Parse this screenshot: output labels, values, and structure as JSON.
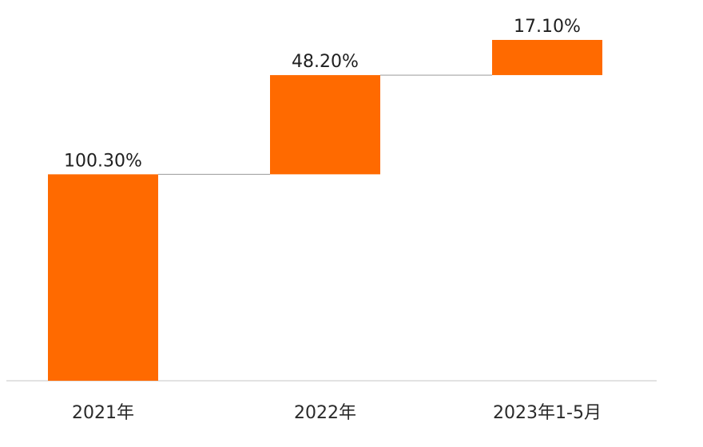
{
  "chart_data": {
    "type": "bar",
    "subtype": "waterfall",
    "title": "",
    "xlabel": "",
    "ylabel": "",
    "categories": [
      "2021年",
      "2022年",
      "2023年1-5月"
    ],
    "values": [
      100.3,
      48.2,
      17.1
    ],
    "value_labels": [
      "100.30%",
      "48.20%",
      "17.10%"
    ],
    "unit": "%",
    "ylim": [
      0,
      165.6
    ],
    "grid": false,
    "legend": "none",
    "bar_color": "#FF6A00",
    "connector_color": "#9a9a9a",
    "axis_color": "#d9d9d9"
  }
}
